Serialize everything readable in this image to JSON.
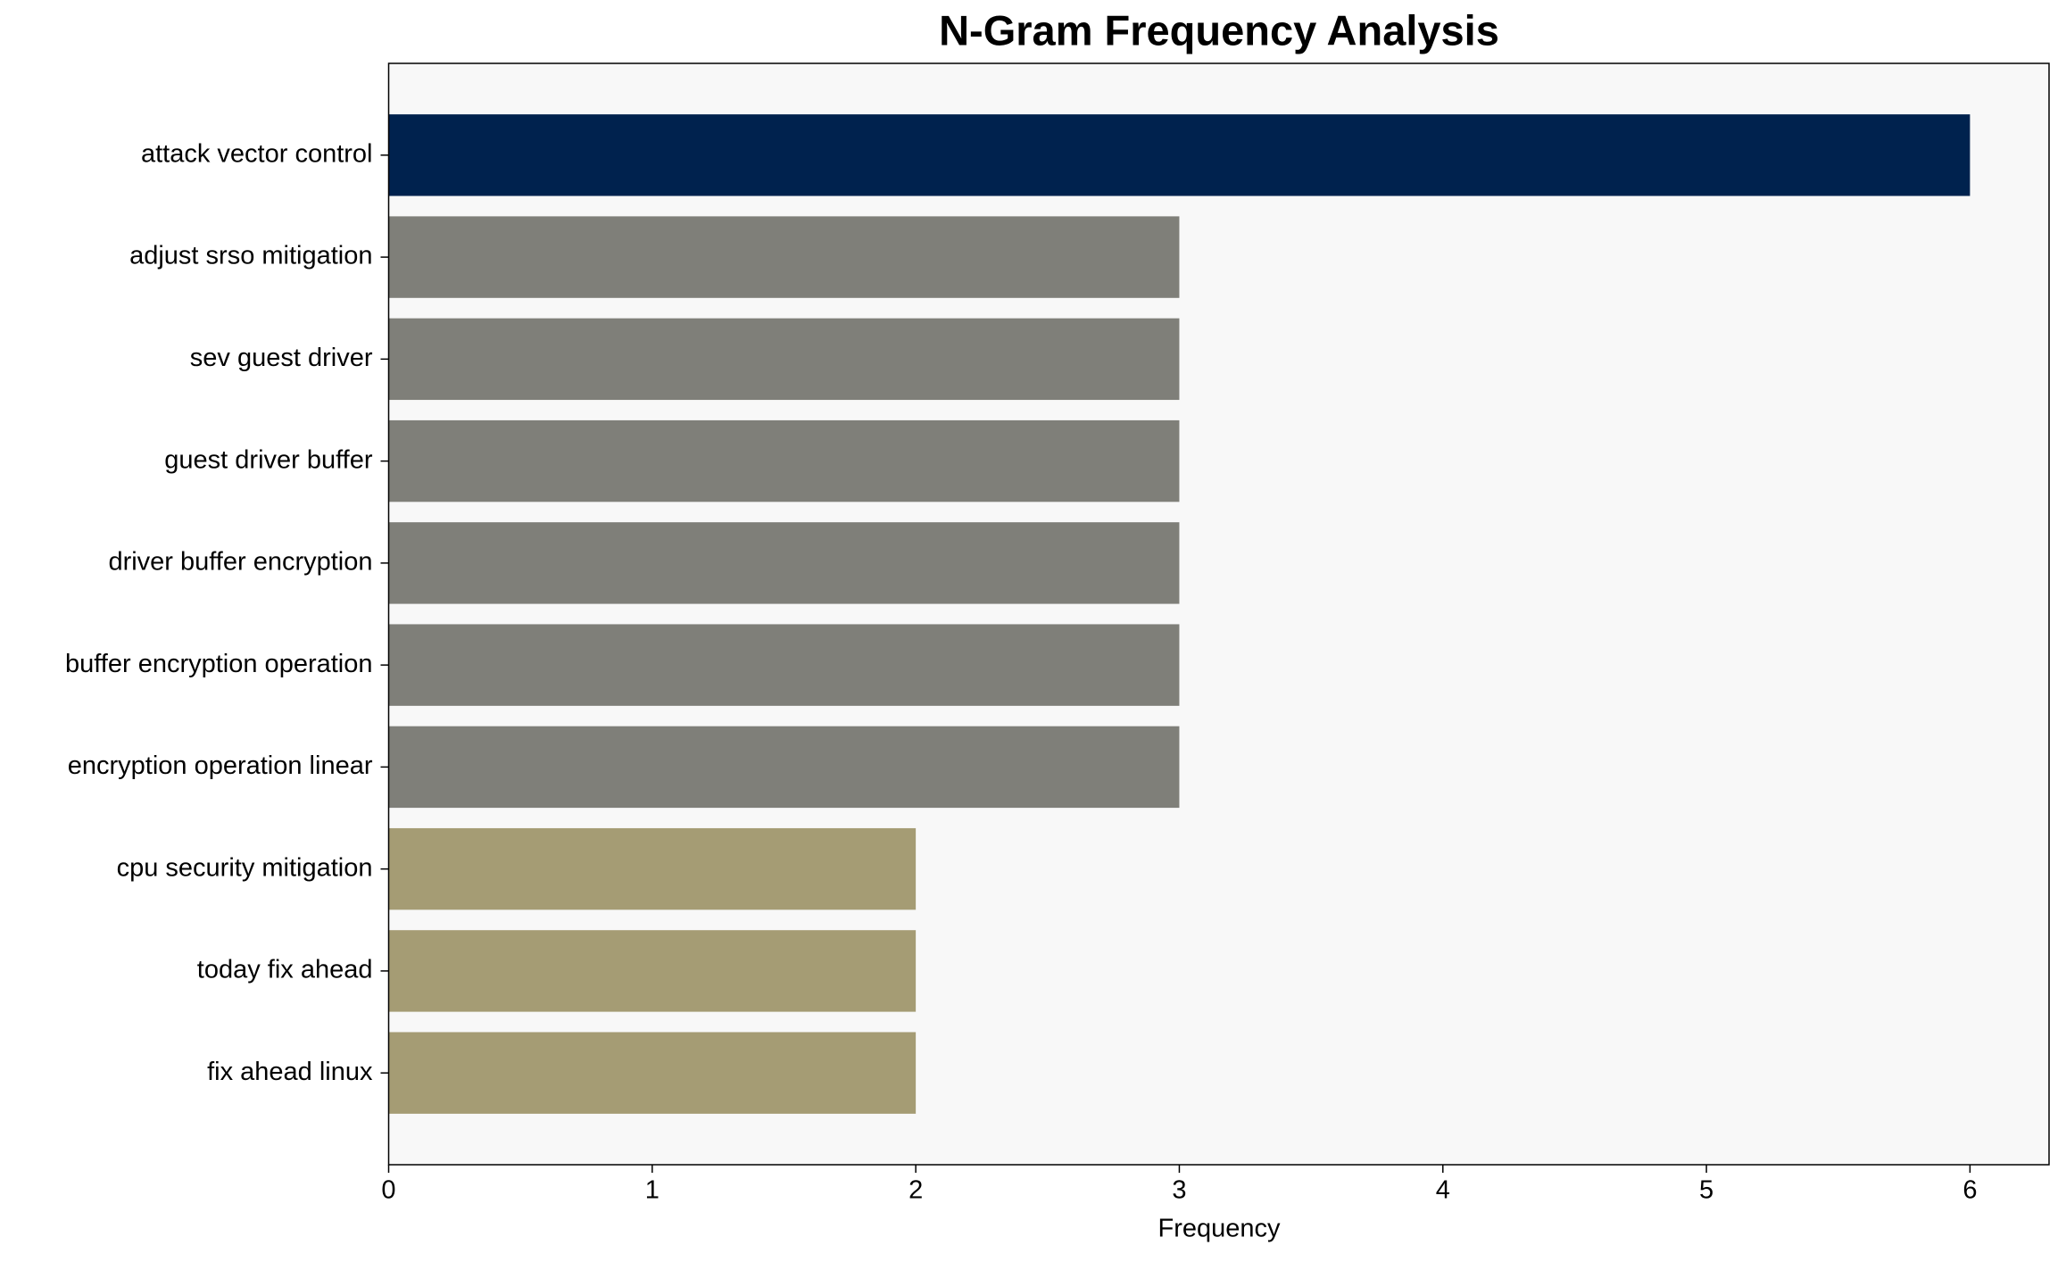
{
  "chart_data": {
    "type": "barh",
    "title": "N-Gram Frequency Analysis",
    "xlabel": "Frequency",
    "categories": [
      "attack vector control",
      "adjust srso mitigation",
      "sev guest driver",
      "guest driver buffer",
      "driver buffer encryption",
      "buffer encryption operation",
      "encryption operation linear",
      "cpu security mitigation",
      "today fix ahead",
      "fix ahead linux"
    ],
    "values": [
      6,
      3,
      3,
      3,
      3,
      3,
      3,
      2,
      2,
      2
    ],
    "colors": [
      "#00224e",
      "#7f7f79",
      "#7f7f79",
      "#7f7f79",
      "#7f7f79",
      "#7f7f79",
      "#7f7f79",
      "#a59c74",
      "#a59c74",
      "#a59c74"
    ],
    "xlim": [
      0,
      6.3
    ],
    "xticks": [
      0,
      1,
      2,
      3,
      4,
      5,
      6
    ],
    "grid": false,
    "background": "#f8f8f8"
  }
}
